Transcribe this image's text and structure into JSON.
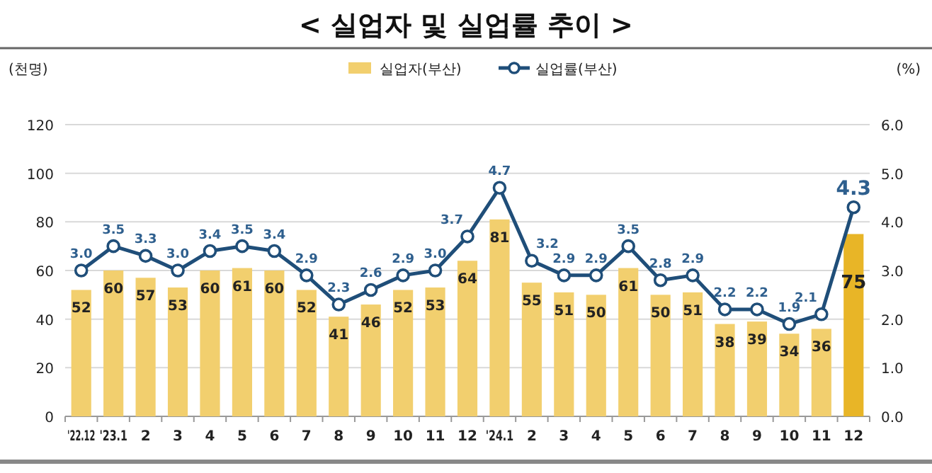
{
  "chart_data": {
    "type": "bar",
    "title": "< 실업자 및 실업률 추이 >",
    "ylabel": "(천명)",
    "y2label": "(%)",
    "categories": [
      "'22.12",
      "'23.1",
      "2",
      "3",
      "4",
      "5",
      "6",
      "7",
      "8",
      "9",
      "10",
      "11",
      "12",
      "'24.1",
      "2",
      "3",
      "4",
      "5",
      "6",
      "7",
      "8",
      "9",
      "10",
      "11",
      "12"
    ],
    "series": [
      {
        "name": "실업자(부산)",
        "type": "bar",
        "color": "#f2cf6e",
        "colors": [
          "#f2cf6e",
          "#f2cf6e",
          "#f2cf6e",
          "#f2cf6e",
          "#f2cf6e",
          "#f2cf6e",
          "#f2cf6e",
          "#f2cf6e",
          "#f2cf6e",
          "#f2cf6e",
          "#f2cf6e",
          "#f2cf6e",
          "#f2cf6e",
          "#f2cf6e",
          "#f2cf6e",
          "#f2cf6e",
          "#f2cf6e",
          "#f2cf6e",
          "#f2cf6e",
          "#f2cf6e",
          "#f2cf6e",
          "#f2cf6e",
          "#f2cf6e",
          "#f2cf6e",
          "#e8b527"
        ],
        "values": [
          52,
          60,
          57,
          53,
          60,
          61,
          60,
          52,
          41,
          46,
          52,
          53,
          64,
          81,
          55,
          51,
          50,
          61,
          50,
          51,
          38,
          39,
          34,
          36,
          75
        ]
      },
      {
        "name": "실업률(부산)",
        "type": "line",
        "axis": "y2",
        "color": "#1f4e79",
        "marker": "circle",
        "values": [
          3.0,
          3.5,
          3.3,
          3.0,
          3.4,
          3.5,
          3.4,
          2.9,
          2.3,
          2.6,
          2.9,
          3.0,
          3.7,
          4.7,
          3.2,
          2.9,
          2.9,
          3.5,
          2.8,
          2.9,
          2.2,
          2.2,
          1.9,
          2.1,
          4.3
        ],
        "value_labels": [
          "3.0",
          "3.5",
          "3.3",
          "3.0",
          "3.4",
          "3.5",
          "3.4",
          "2.9",
          "2.3",
          "2.6",
          "2.9",
          "3.0",
          "3.7",
          "4.7",
          "3.2",
          "2.9",
          "2.9",
          "3.5",
          "2.8",
          "2.9",
          "2.2",
          "2.2",
          "1.9",
          "2.1",
          "4.3"
        ]
      }
    ],
    "ylim": [
      0,
      120
    ],
    "yticks": [
      0,
      20,
      40,
      60,
      80,
      100,
      120
    ],
    "y2lim": [
      0,
      6
    ],
    "y2ticks": [
      {
        "value": 0,
        "label": "0.0"
      },
      {
        "value": 1,
        "label": "1.0"
      },
      {
        "value": 2,
        "label": "2.0"
      },
      {
        "value": 3,
        "label": "3.0"
      },
      {
        "value": 4,
        "label": "4.0"
      },
      {
        "value": 5,
        "label": "5.0"
      },
      {
        "value": 6,
        "label": "6.0"
      }
    ],
    "grid": "y",
    "legend": "top",
    "data_labels": true
  }
}
